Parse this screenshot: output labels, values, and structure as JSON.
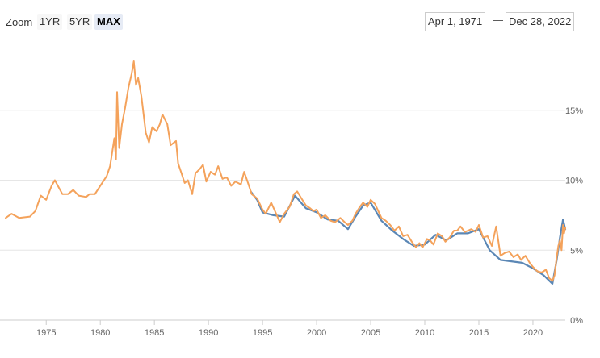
{
  "toolbar": {
    "zoom_label": "Zoom",
    "buttons": [
      "1YR",
      "5YR",
      "MAX"
    ],
    "active_button": "MAX",
    "range_start": "Apr 1, 1971",
    "range_separator": "—",
    "range_end": "Dec 28, 2022"
  },
  "colors": {
    "series_1": "#f4a25b",
    "series_2": "#5b87b5",
    "gridline": "#e6e6e6",
    "axis": "#cccccc"
  },
  "chart_data": {
    "type": "line",
    "title": "",
    "xlabel": "",
    "ylabel": "",
    "xlim": [
      1971.25,
      2022.99
    ],
    "ylim": [
      0,
      20
    ],
    "x_ticks": [
      "1975",
      "1980",
      "1985",
      "1990",
      "1995",
      "2000",
      "2005",
      "2010",
      "2015",
      "2020"
    ],
    "y_ticks": [
      "0%",
      "5%",
      "10%",
      "15%"
    ],
    "grid": "horizontal",
    "legend": "none",
    "series": [
      {
        "color": "#f4a25b",
        "points": [
          [
            1971.25,
            7.3
          ],
          [
            1971.8,
            7.6
          ],
          [
            1972.5,
            7.3
          ],
          [
            1973.5,
            7.4
          ],
          [
            1974.0,
            7.8
          ],
          [
            1974.5,
            8.9
          ],
          [
            1975.0,
            8.6
          ],
          [
            1975.5,
            9.6
          ],
          [
            1975.8,
            10.0
          ],
          [
            1976.5,
            9.0
          ],
          [
            1977.0,
            9.0
          ],
          [
            1977.5,
            9.3
          ],
          [
            1978.0,
            8.9
          ],
          [
            1978.7,
            8.8
          ],
          [
            1979.0,
            9.0
          ],
          [
            1979.5,
            9.0
          ],
          [
            1980.0,
            9.6
          ],
          [
            1980.6,
            10.3
          ],
          [
            1980.9,
            11.0
          ],
          [
            1981.3,
            13.0
          ],
          [
            1981.45,
            11.5
          ],
          [
            1981.55,
            16.3
          ],
          [
            1981.75,
            12.3
          ],
          [
            1982.0,
            14.0
          ],
          [
            1982.3,
            15.2
          ],
          [
            1982.6,
            16.6
          ],
          [
            1982.9,
            17.6
          ],
          [
            1983.1,
            18.5
          ],
          [
            1983.3,
            16.8
          ],
          [
            1983.5,
            17.3
          ],
          [
            1983.8,
            16.0
          ],
          [
            1984.2,
            13.4
          ],
          [
            1984.5,
            12.7
          ],
          [
            1984.8,
            13.8
          ],
          [
            1985.2,
            13.5
          ],
          [
            1985.5,
            14.0
          ],
          [
            1985.75,
            14.7
          ],
          [
            1986.2,
            14.0
          ],
          [
            1986.5,
            12.5
          ],
          [
            1987.0,
            12.8
          ],
          [
            1987.2,
            11.2
          ],
          [
            1987.5,
            10.5
          ],
          [
            1987.8,
            9.8
          ],
          [
            1988.1,
            10.0
          ],
          [
            1988.5,
            9.0
          ],
          [
            1988.8,
            10.5
          ],
          [
            1989.2,
            10.8
          ],
          [
            1989.5,
            11.1
          ],
          [
            1989.8,
            9.9
          ],
          [
            1990.2,
            10.6
          ],
          [
            1990.6,
            10.4
          ],
          [
            1990.9,
            11.0
          ],
          [
            1991.3,
            10.1
          ],
          [
            1991.7,
            10.2
          ],
          [
            1992.1,
            9.6
          ],
          [
            1992.5,
            9.9
          ],
          [
            1993.0,
            9.7
          ],
          [
            1993.3,
            10.6
          ],
          [
            1993.7,
            9.7
          ],
          [
            1994.0,
            9.0
          ],
          [
            1994.5,
            8.7
          ],
          [
            1995.0,
            7.9
          ],
          [
            1995.3,
            7.6
          ],
          [
            1995.8,
            8.4
          ],
          [
            1996.2,
            7.7
          ],
          [
            1996.6,
            7.0
          ],
          [
            1997.0,
            7.6
          ],
          [
            1997.5,
            8.1
          ],
          [
            1997.9,
            9.0
          ],
          [
            1998.2,
            9.2
          ],
          [
            1998.6,
            8.7
          ],
          [
            1999.0,
            8.2
          ],
          [
            1999.4,
            8.0
          ],
          [
            1999.7,
            7.8
          ],
          [
            2000.0,
            7.9
          ],
          [
            2000.4,
            7.3
          ],
          [
            2000.8,
            7.5
          ],
          [
            2001.3,
            7.1
          ],
          [
            2001.7,
            7.0
          ],
          [
            2002.2,
            7.3
          ],
          [
            2002.6,
            7.0
          ],
          [
            2002.9,
            6.8
          ],
          [
            2003.3,
            7.1
          ],
          [
            2003.6,
            7.6
          ],
          [
            2004.0,
            8.1
          ],
          [
            2004.3,
            8.4
          ],
          [
            2004.7,
            8.1
          ],
          [
            2005.0,
            8.6
          ],
          [
            2005.4,
            8.3
          ],
          [
            2005.7,
            7.8
          ],
          [
            2006.0,
            7.3
          ],
          [
            2006.4,
            7.1
          ],
          [
            2006.8,
            6.8
          ],
          [
            2007.2,
            6.4
          ],
          [
            2007.6,
            6.7
          ],
          [
            2008.0,
            6.0
          ],
          [
            2008.4,
            6.1
          ],
          [
            2008.8,
            5.6
          ],
          [
            2009.2,
            5.2
          ],
          [
            2009.5,
            5.5
          ],
          [
            2009.8,
            5.2
          ],
          [
            2010.2,
            5.8
          ],
          [
            2010.5,
            5.7
          ],
          [
            2010.8,
            5.4
          ],
          [
            2011.2,
            6.2
          ],
          [
            2011.6,
            6.0
          ],
          [
            2011.9,
            5.6
          ],
          [
            2012.3,
            5.9
          ],
          [
            2012.7,
            6.4
          ],
          [
            2013.0,
            6.4
          ],
          [
            2013.3,
            6.7
          ],
          [
            2013.7,
            6.3
          ],
          [
            2014.0,
            6.4
          ],
          [
            2014.3,
            6.5
          ],
          [
            2014.7,
            6.3
          ],
          [
            2015.0,
            6.8
          ],
          [
            2015.4,
            5.9
          ],
          [
            2015.8,
            6.0
          ],
          [
            2016.2,
            5.3
          ],
          [
            2016.6,
            6.7
          ],
          [
            2017.0,
            4.6
          ],
          [
            2017.4,
            4.8
          ],
          [
            2017.8,
            4.9
          ],
          [
            2018.2,
            4.5
          ],
          [
            2018.6,
            4.7
          ],
          [
            2018.9,
            4.3
          ],
          [
            2019.3,
            4.6
          ],
          [
            2019.7,
            4.1
          ],
          [
            2020.0,
            3.8
          ],
          [
            2020.4,
            3.5
          ],
          [
            2020.8,
            3.4
          ],
          [
            2021.2,
            3.6
          ],
          [
            2021.5,
            3.0
          ],
          [
            2021.8,
            2.8
          ],
          [
            2022.0,
            3.2
          ],
          [
            2022.2,
            4.5
          ],
          [
            2022.35,
            5.3
          ],
          [
            2022.5,
            5.7
          ],
          [
            2022.65,
            5.0
          ],
          [
            2022.78,
            6.8
          ],
          [
            2022.88,
            6.2
          ],
          [
            2022.99,
            6.6
          ]
        ]
      },
      {
        "color": "#5b87b5",
        "points": [
          [
            1993.9,
            9.2
          ],
          [
            1994.5,
            8.6
          ],
          [
            1995.0,
            7.7
          ],
          [
            1996.0,
            7.5
          ],
          [
            1997.0,
            7.4
          ],
          [
            1998.0,
            8.9
          ],
          [
            1999.0,
            8.0
          ],
          [
            2000.0,
            7.7
          ],
          [
            2001.0,
            7.2
          ],
          [
            2002.0,
            7.1
          ],
          [
            2002.9,
            6.5
          ],
          [
            2003.6,
            7.4
          ],
          [
            2004.3,
            8.2
          ],
          [
            2005.0,
            8.4
          ],
          [
            2006.0,
            7.1
          ],
          [
            2007.0,
            6.4
          ],
          [
            2008.0,
            5.8
          ],
          [
            2009.0,
            5.3
          ],
          [
            2010.0,
            5.4
          ],
          [
            2011.0,
            6.1
          ],
          [
            2012.0,
            5.7
          ],
          [
            2013.0,
            6.2
          ],
          [
            2014.0,
            6.2
          ],
          [
            2015.0,
            6.5
          ],
          [
            2016.0,
            5.0
          ],
          [
            2017.0,
            4.3
          ],
          [
            2018.0,
            4.2
          ],
          [
            2019.0,
            4.1
          ],
          [
            2020.0,
            3.7
          ],
          [
            2021.0,
            3.2
          ],
          [
            2021.8,
            2.6
          ],
          [
            2022.2,
            4.3
          ],
          [
            2022.5,
            5.9
          ],
          [
            2022.78,
            7.2
          ],
          [
            2022.99,
            6.5
          ]
        ]
      }
    ]
  }
}
